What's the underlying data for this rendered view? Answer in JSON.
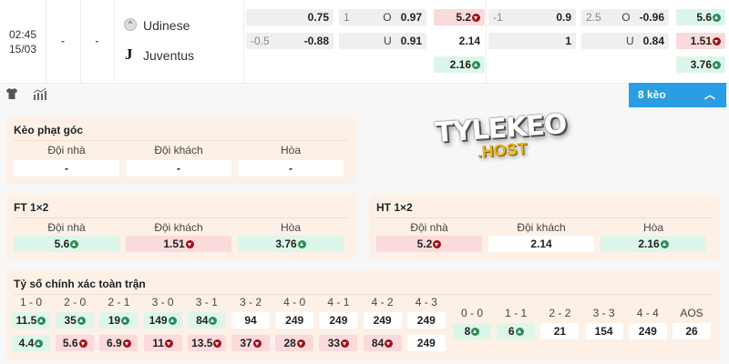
{
  "match": {
    "time": "02:45",
    "date": "15/03",
    "score_home": "-",
    "score_away": "-",
    "home": "Udinese",
    "away": "Juventus"
  },
  "odds": {
    "half_time": {
      "handicap": [
        {
          "line": "",
          "value": "0.75"
        },
        {
          "line": "-0.5",
          "value": "-0.88"
        }
      ],
      "over_under": [
        {
          "line": "1",
          "side": "O",
          "value": "0.97"
        },
        {
          "line": "",
          "side": "U",
          "value": "0.91"
        }
      ],
      "x12": [
        {
          "value": "5.2",
          "trend": "down"
        },
        {
          "value": "2.14",
          "trend": ""
        },
        {
          "value": "2.16",
          "trend": "up"
        }
      ]
    },
    "full_time": {
      "handicap": [
        {
          "line": "-1",
          "value": "0.9"
        },
        {
          "line": "",
          "value": "1"
        }
      ],
      "over_under": [
        {
          "line": "2.5",
          "side": "O",
          "value": "-0.96"
        },
        {
          "line": "",
          "side": "U",
          "value": "0.84"
        }
      ],
      "x12": [
        {
          "value": "5.6",
          "trend": "up"
        },
        {
          "value": "1.51",
          "trend": "down"
        },
        {
          "value": "3.76",
          "trend": "up"
        }
      ]
    }
  },
  "toolbar": {
    "icons": [
      "shirt-icon",
      "stats-icon"
    ],
    "more_label": "8 kèo"
  },
  "watermark": {
    "line1": "TYLEKEO",
    "line2": ".HOST"
  },
  "corner": {
    "title": "Kèo phạt góc",
    "labels": [
      "Đội nhà",
      "Đội khách",
      "Hòa"
    ],
    "values": [
      {
        "value": "-",
        "trend": ""
      },
      {
        "value": "-",
        "trend": ""
      },
      {
        "value": "-",
        "trend": ""
      }
    ]
  },
  "ft": {
    "title": "FT 1×2",
    "labels": [
      "Đội nhà",
      "Đội khách",
      "Hòa"
    ],
    "values": [
      {
        "value": "5.6",
        "trend": "up"
      },
      {
        "value": "1.51",
        "trend": "down"
      },
      {
        "value": "3.76",
        "trend": "up"
      }
    ]
  },
  "ht": {
    "title": "HT 1×2",
    "labels": [
      "Đội nhà",
      "Đội khách",
      "Hòa"
    ],
    "values": [
      {
        "value": "5.2",
        "trend": "down"
      },
      {
        "value": "2.14",
        "trend": ""
      },
      {
        "value": "2.16",
        "trend": "up"
      }
    ]
  },
  "correct_score": {
    "title": "Tỷ số chính xác toàn trận",
    "wins": [
      {
        "score": "1 - 0",
        "home": {
          "value": "11.5",
          "trend": "up"
        },
        "away": {
          "value": "4.4",
          "trend": "up"
        }
      },
      {
        "score": "2 - 0",
        "home": {
          "value": "35",
          "trend": "up"
        },
        "away": {
          "value": "5.6",
          "trend": "down"
        }
      },
      {
        "score": "2 - 1",
        "home": {
          "value": "19",
          "trend": "up"
        },
        "away": {
          "value": "6.9",
          "trend": "down"
        }
      },
      {
        "score": "3 - 0",
        "home": {
          "value": "149",
          "trend": "up"
        },
        "away": {
          "value": "11",
          "trend": "down"
        }
      },
      {
        "score": "3 - 1",
        "home": {
          "value": "84",
          "trend": "up"
        },
        "away": {
          "value": "13.5",
          "trend": "down"
        }
      },
      {
        "score": "3 - 2",
        "home": {
          "value": "94",
          "trend": ""
        },
        "away": {
          "value": "37",
          "trend": "down"
        }
      },
      {
        "score": "4 - 0",
        "home": {
          "value": "249",
          "trend": ""
        },
        "away": {
          "value": "28",
          "trend": "down"
        }
      },
      {
        "score": "4 - 1",
        "home": {
          "value": "249",
          "trend": ""
        },
        "away": {
          "value": "33",
          "trend": "down"
        }
      },
      {
        "score": "4 - 2",
        "home": {
          "value": "249",
          "trend": ""
        },
        "away": {
          "value": "84",
          "trend": "down"
        }
      },
      {
        "score": "4 - 3",
        "home": {
          "value": "249",
          "trend": ""
        },
        "away": {
          "value": "249",
          "trend": ""
        }
      }
    ],
    "draws": [
      {
        "score": "0 - 0",
        "value": "8",
        "trend": "up"
      },
      {
        "score": "1 - 1",
        "value": "6",
        "trend": "up"
      },
      {
        "score": "2 - 2",
        "value": "21",
        "trend": ""
      },
      {
        "score": "3 - 3",
        "value": "154",
        "trend": ""
      },
      {
        "score": "4 - 4",
        "value": "249",
        "trend": ""
      },
      {
        "score": "AOS",
        "value": "26",
        "trend": ""
      }
    ]
  },
  "colors": {
    "accent": "#2a9de3",
    "up": "#2e8b57",
    "down": "#a3101c",
    "up_bg": "#dcf7ea",
    "down_bg": "#fadada",
    "panel_bg": "#fdf0e6"
  }
}
